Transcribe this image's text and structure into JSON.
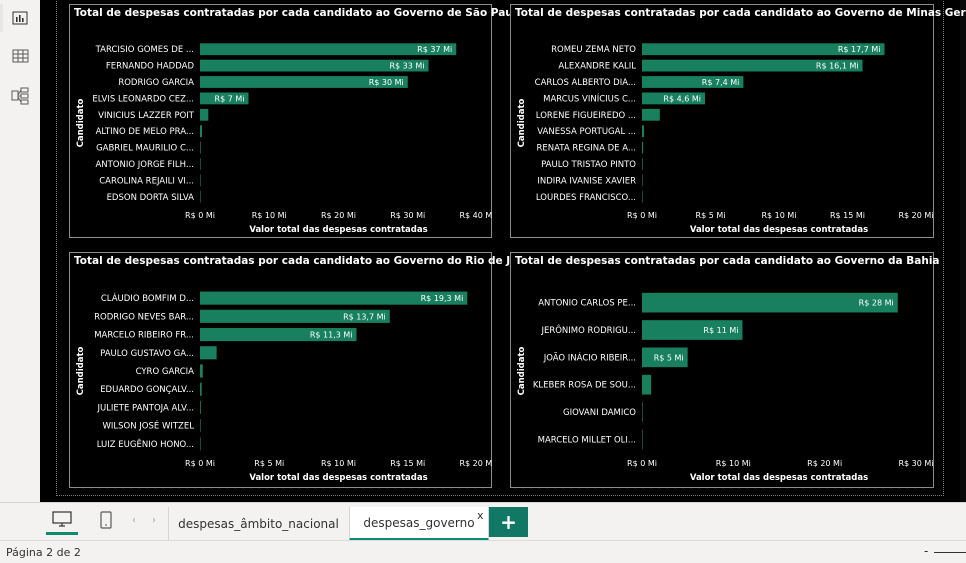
{
  "rail": {
    "items": [
      {
        "icon": "report-view-icon",
        "active": true
      },
      {
        "icon": "table-view-icon",
        "active": false
      },
      {
        "icon": "model-view-icon",
        "active": false
      }
    ]
  },
  "colors": {
    "bar": "#19805f",
    "background": "#000000",
    "accent": "#0e8a6f",
    "add_button": "#117865"
  },
  "chart_data": [
    {
      "type": "bar",
      "orientation": "horizontal",
      "title": "Total de despesas contratadas por cada candidato ao Governo de São Paulo",
      "xlabel": "Valor total das despesas contratadas",
      "ylabel": "Candidato",
      "xlim": [
        0,
        40
      ],
      "ticks": [
        0,
        10,
        20,
        30,
        40
      ],
      "tick_labels": [
        "R$ 0 Mi",
        "R$ 10 Mi",
        "R$ 20 Mi",
        "R$ 30 Mi",
        "R$ 40 Mi"
      ],
      "categories": [
        "TARCISIO GOMES DE ...",
        "FERNANDO HADDAD",
        "RODRIGO GARCIA",
        "ELVIS LEONARDO CEZ...",
        "VINICIUS LAZZER POIT",
        "ALTINO DE MELO PRA...",
        "GABRIEL MAURILIO C...",
        "ANTONIO JORGE FILH...",
        "CAROLINA REJAILI VI...",
        "EDSON DORTA SILVA"
      ],
      "values": [
        37,
        33,
        30,
        7,
        1.2,
        0.3,
        0.1,
        0.05,
        0.03,
        0.01
      ],
      "data_labels": [
        "R$ 37 Mi",
        "R$ 33 Mi",
        "R$ 30 Mi",
        "R$ 7 Mi",
        "",
        "",
        "",
        "",
        "",
        ""
      ]
    },
    {
      "type": "bar",
      "orientation": "horizontal",
      "title": "Total de despesas contratadas por cada candidato ao Governo de Minas Gerais",
      "xlabel": "Valor total das despesas contratadas",
      "ylabel": "Candidato",
      "xlim": [
        0,
        20
      ],
      "ticks": [
        0,
        5,
        10,
        15,
        20
      ],
      "tick_labels": [
        "R$ 0 Mi",
        "R$ 5 Mi",
        "R$ 10 Mi",
        "R$ 15 Mi",
        "R$ 20 Mi"
      ],
      "categories": [
        "ROMEU ZEMA NETO",
        "ALEXANDRE KALIL",
        "CARLOS ALBERTO DIA...",
        "MARCUS VINÍCIUS C...",
        "LORENE FIGUEIREDO ...",
        "VANESSA PORTUGAL ...",
        "RENATA REGINA DE A...",
        "PAULO TRISTAO PINTO",
        "INDIRA IVANISE XAVIER",
        "LOURDES FRANCISCO..."
      ],
      "values": [
        17.7,
        16.1,
        7.4,
        4.6,
        1.3,
        0.15,
        0.08,
        0.05,
        0.02,
        0.01
      ],
      "data_labels": [
        "R$ 17,7 Mi",
        "R$ 16,1 Mi",
        "R$ 7,4 Mi",
        "R$ 4,6 Mi",
        "",
        "",
        "",
        "",
        "",
        ""
      ]
    },
    {
      "type": "bar",
      "orientation": "horizontal",
      "title": "Total de despesas contratadas por cada candidato ao Governo do Rio de Janeiro",
      "xlabel": "Valor total das despesas contratadas",
      "ylabel": "Candidato",
      "xlim": [
        0,
        20
      ],
      "ticks": [
        0,
        5,
        10,
        15,
        20
      ],
      "tick_labels": [
        "R$ 0 Mi",
        "R$ 5 Mi",
        "R$ 10 Mi",
        "R$ 15 Mi",
        "R$ 20 Mi"
      ],
      "categories": [
        "CLÁUDIO BOMFIM D...",
        "RODRIGO NEVES BAR...",
        "MARCELO RIBEIRO FR...",
        "PAULO GUSTAVO GA...",
        "CYRO GARCIA",
        "EDUARDO GONÇALV...",
        "JULIETE PANTOJA ALV...",
        "WILSON JOSÉ WITZEL",
        "LUIZ EUGÊNIO HONO..."
      ],
      "values": [
        19.3,
        13.7,
        11.3,
        1.2,
        0.2,
        0.12,
        0.06,
        0.03,
        0.01
      ],
      "data_labels": [
        "R$ 19,3 Mi",
        "R$ 13,7 Mi",
        "R$ 11,3 Mi",
        "",
        "",
        "",
        "",
        "",
        ""
      ]
    },
    {
      "type": "bar",
      "orientation": "horizontal",
      "title": "Total de despesas contratadas por cada candidato ao Governo da Bahia",
      "xlabel": "Valor total das despesas contratadas",
      "ylabel": "Candidato",
      "xlim": [
        0,
        30
      ],
      "ticks": [
        0,
        10,
        20,
        30
      ],
      "tick_labels": [
        "R$ 0 Mi",
        "R$ 10 Mi",
        "R$ 20 Mi",
        "R$ 30 Mi"
      ],
      "categories": [
        "ANTONIO CARLOS PE...",
        "JERÔNIMO RODRIGU...",
        "JOÃO INÁCIO RIBEIR...",
        "KLEBER ROSA DE SOU...",
        "GIOVANI DAMICO",
        "MARCELO MILLET OLI..."
      ],
      "values": [
        28,
        11,
        5,
        1,
        0.05,
        0.02
      ],
      "data_labels": [
        "R$ 28 Mi",
        "R$ 11 Mi",
        "R$ 5 Mi",
        "",
        "",
        ""
      ]
    }
  ],
  "tabs": [
    {
      "label": "despesas_âmbito_nacional",
      "active": false
    },
    {
      "label": "despesas_governo",
      "active": true
    }
  ],
  "tab_close": "x",
  "add_page": "+",
  "nav": {
    "prev": "‹",
    "next": "›"
  },
  "status": {
    "page_indicator": "Página 2 de 2",
    "zoom_minus": "-"
  }
}
